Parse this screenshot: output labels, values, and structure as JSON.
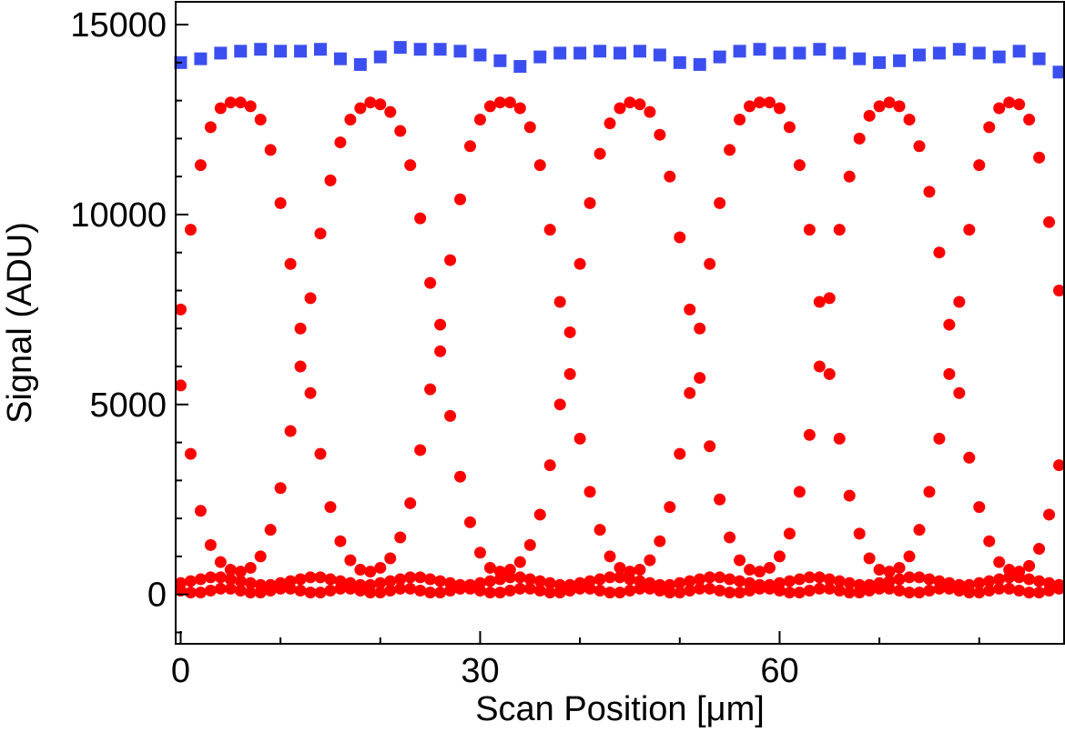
{
  "chart_data": {
    "type": "scatter",
    "title": "",
    "xlabel": "Scan Position [μm]",
    "ylabel": "Signal (ADU)",
    "xlim": [
      -0.5,
      88.5
    ],
    "ylim": [
      -1300,
      15600
    ],
    "x_ticks": [
      0,
      30,
      60
    ],
    "x_minor_ticks": [
      10,
      20,
      40,
      50,
      70,
      80
    ],
    "y_ticks": [
      0,
      5000,
      10000,
      15000
    ],
    "y_minor_ticks": [
      -1000,
      1000,
      2000,
      3000,
      4000,
      6000,
      7000,
      8000,
      9000,
      11000,
      12000,
      13000,
      14000
    ],
    "grid": false,
    "legend": "none",
    "series": [
      {
        "marker": "square",
        "color": "#3b4ff0",
        "x": [
          0,
          2,
          4,
          6,
          8,
          10,
          12,
          14,
          16,
          18,
          20,
          22,
          24,
          26,
          28,
          30,
          32,
          34,
          36,
          38,
          40,
          42,
          44,
          46,
          48,
          50,
          52,
          54,
          56,
          58,
          60,
          62,
          64,
          66,
          68,
          70,
          72,
          74,
          76,
          78,
          80,
          82,
          84,
          86,
          88
        ],
        "y": [
          14000,
          14100,
          14250,
          14300,
          14350,
          14300,
          14300,
          14350,
          14100,
          13950,
          14150,
          14400,
          14350,
          14350,
          14300,
          14200,
          14050,
          13900,
          14150,
          14250,
          14250,
          14300,
          14250,
          14300,
          14200,
          14000,
          13950,
          14150,
          14300,
          14350,
          14250,
          14250,
          14350,
          14250,
          14100,
          14000,
          14050,
          14200,
          14250,
          14350,
          14250,
          14150,
          14300,
          14100,
          13750
        ]
      },
      {
        "marker": "circle",
        "color": "#ff0000",
        "x": [
          0,
          1,
          2,
          3,
          4,
          5,
          6,
          7,
          8,
          9,
          10,
          11,
          12,
          13,
          14,
          15,
          16,
          17,
          18,
          19,
          20,
          21,
          22,
          23,
          24,
          25,
          26,
          27,
          28,
          29,
          30,
          31,
          32,
          33,
          34,
          35,
          36,
          37,
          38,
          39,
          40,
          41,
          42,
          43,
          44,
          45,
          46,
          47,
          48,
          49,
          50,
          51,
          52,
          53,
          54,
          55,
          56,
          57,
          58,
          59,
          60,
          61,
          62,
          63,
          64,
          65,
          66,
          67,
          68,
          69,
          70,
          71,
          72,
          73,
          74,
          75,
          76,
          77,
          78,
          79,
          80,
          81,
          82,
          83,
          84,
          85,
          86,
          87,
          88
        ],
        "y": [
          7500,
          9600,
          11300,
          12300,
          12800,
          12950,
          12950,
          12850,
          12500,
          11700,
          10300,
          8700,
          7000,
          5300,
          3700,
          2300,
          1400,
          900,
          650,
          600,
          700,
          950,
          1500,
          2400,
          3800,
          5400,
          7100,
          8800,
          10400,
          11800,
          12500,
          12850,
          12950,
          12950,
          12800,
          12300,
          11300,
          9600,
          7700,
          5800,
          4100,
          2700,
          1700,
          1000,
          700,
          600,
          650,
          900,
          1400,
          2300,
          3700,
          5300,
          7000,
          8700,
          10300,
          11700,
          12500,
          12850,
          12950,
          12950,
          12800,
          12300,
          11300,
          9600,
          7700,
          5800,
          4100,
          2600,
          1600,
          950,
          650,
          600,
          700,
          1000,
          1700,
          2700,
          4100,
          5800,
          7700,
          9600,
          11300,
          12300,
          12800,
          12950,
          12900,
          12500,
          11500,
          9800,
          8000
        ]
      },
      {
        "marker": "circle",
        "color": "#ff0000",
        "x": [
          0,
          1,
          2,
          3,
          4,
          5,
          6,
          7,
          8,
          9,
          10,
          11,
          12,
          13,
          14,
          15,
          16,
          17,
          18,
          19,
          20,
          21,
          22,
          23,
          24,
          25,
          26,
          27,
          28,
          29,
          30,
          31,
          32,
          33,
          34,
          35,
          36,
          37,
          38,
          39,
          40,
          41,
          42,
          43,
          44,
          45,
          46,
          47,
          48,
          49,
          50,
          51,
          52,
          53,
          54,
          55,
          56,
          57,
          58,
          59,
          60,
          61,
          62,
          63,
          64,
          65,
          66,
          67,
          68,
          69,
          70,
          71,
          72,
          73,
          74,
          75,
          76,
          77,
          78,
          79,
          80,
          81,
          82,
          83,
          84,
          85,
          86,
          87,
          88
        ],
        "y": [
          5500,
          3700,
          2200,
          1300,
          850,
          650,
          600,
          700,
          1000,
          1700,
          2800,
          4300,
          6000,
          7800,
          9500,
          10900,
          11900,
          12500,
          12800,
          12950,
          12900,
          12700,
          12200,
          11300,
          9900,
          8200,
          6400,
          4700,
          3100,
          1900,
          1100,
          700,
          600,
          650,
          850,
          1300,
          2100,
          3400,
          5000,
          6900,
          8700,
          10300,
          11600,
          12400,
          12800,
          12950,
          12900,
          12700,
          12100,
          11000,
          9400,
          7500,
          5700,
          3900,
          2500,
          1500,
          900,
          650,
          600,
          700,
          1000,
          1600,
          2700,
          4200,
          6000,
          7800,
          9600,
          11000,
          12000,
          12600,
          12850,
          12950,
          12850,
          12500,
          11800,
          10600,
          9000,
          7100,
          5300,
          3600,
          2300,
          1400,
          850,
          650,
          600,
          750,
          1200,
          2100,
          3400
        ]
      },
      {
        "marker": "circle",
        "color": "#ff0000",
        "x": [
          0,
          1,
          2,
          3,
          4,
          5,
          6,
          7,
          8,
          9,
          10,
          11,
          12,
          13,
          14,
          15,
          16,
          17,
          18,
          19,
          20,
          21,
          22,
          23,
          24,
          25,
          26,
          27,
          28,
          29,
          30,
          31,
          32,
          33,
          34,
          35,
          36,
          37,
          38,
          39,
          40,
          41,
          42,
          43,
          44,
          45,
          46,
          47,
          48,
          49,
          50,
          51,
          52,
          53,
          54,
          55,
          56,
          57,
          58,
          59,
          60,
          61,
          62,
          63,
          64,
          65,
          66,
          67,
          68,
          69,
          70,
          71,
          72,
          73,
          74,
          75,
          76,
          77,
          78,
          79,
          80,
          81,
          82,
          83,
          84,
          85,
          86,
          87,
          88
        ],
        "y": [
          300,
          350,
          400,
          450,
          450,
          400,
          350,
          300,
          250,
          250,
          300,
          350,
          400,
          450,
          450,
          400,
          350,
          300,
          250,
          250,
          300,
          350,
          400,
          450,
          450,
          400,
          350,
          300,
          250,
          250,
          300,
          350,
          400,
          450,
          450,
          400,
          350,
          300,
          250,
          250,
          300,
          350,
          400,
          450,
          450,
          400,
          350,
          300,
          250,
          250,
          300,
          350,
          400,
          450,
          450,
          400,
          350,
          300,
          250,
          250,
          300,
          350,
          400,
          450,
          450,
          400,
          350,
          300,
          250,
          250,
          300,
          350,
          400,
          450,
          450,
          400,
          350,
          300,
          250,
          250,
          300,
          350,
          400,
          450,
          450,
          400,
          350,
          300,
          250
        ]
      },
      {
        "marker": "circle",
        "color": "#ff0000",
        "x": [
          0,
          1,
          2,
          3,
          4,
          5,
          6,
          7,
          8,
          9,
          10,
          11,
          12,
          13,
          14,
          15,
          16,
          17,
          18,
          19,
          20,
          21,
          22,
          23,
          24,
          25,
          26,
          27,
          28,
          29,
          30,
          31,
          32,
          33,
          34,
          35,
          36,
          37,
          38,
          39,
          40,
          41,
          42,
          43,
          44,
          45,
          46,
          47,
          48,
          49,
          50,
          51,
          52,
          53,
          54,
          55,
          56,
          57,
          58,
          59,
          60,
          61,
          62,
          63,
          64,
          65,
          66,
          67,
          68,
          69,
          70,
          71,
          72,
          73,
          74,
          75,
          76,
          77,
          78,
          79,
          80,
          81,
          82,
          83,
          84,
          85,
          86,
          87,
          88
        ],
        "y": [
          100,
          50,
          50,
          100,
          150,
          150,
          100,
          50,
          50,
          100,
          150,
          150,
          100,
          50,
          50,
          100,
          150,
          150,
          100,
          50,
          50,
          100,
          150,
          150,
          100,
          50,
          50,
          100,
          150,
          150,
          100,
          50,
          50,
          100,
          150,
          150,
          100,
          50,
          50,
          100,
          150,
          150,
          100,
          50,
          50,
          100,
          150,
          150,
          100,
          50,
          50,
          100,
          150,
          150,
          100,
          50,
          50,
          100,
          150,
          150,
          100,
          50,
          50,
          100,
          150,
          150,
          100,
          50,
          50,
          100,
          150,
          150,
          100,
          50,
          50,
          100,
          150,
          150,
          100,
          50,
          50,
          100,
          150,
          150,
          100,
          50,
          50,
          100,
          150
        ]
      }
    ]
  }
}
